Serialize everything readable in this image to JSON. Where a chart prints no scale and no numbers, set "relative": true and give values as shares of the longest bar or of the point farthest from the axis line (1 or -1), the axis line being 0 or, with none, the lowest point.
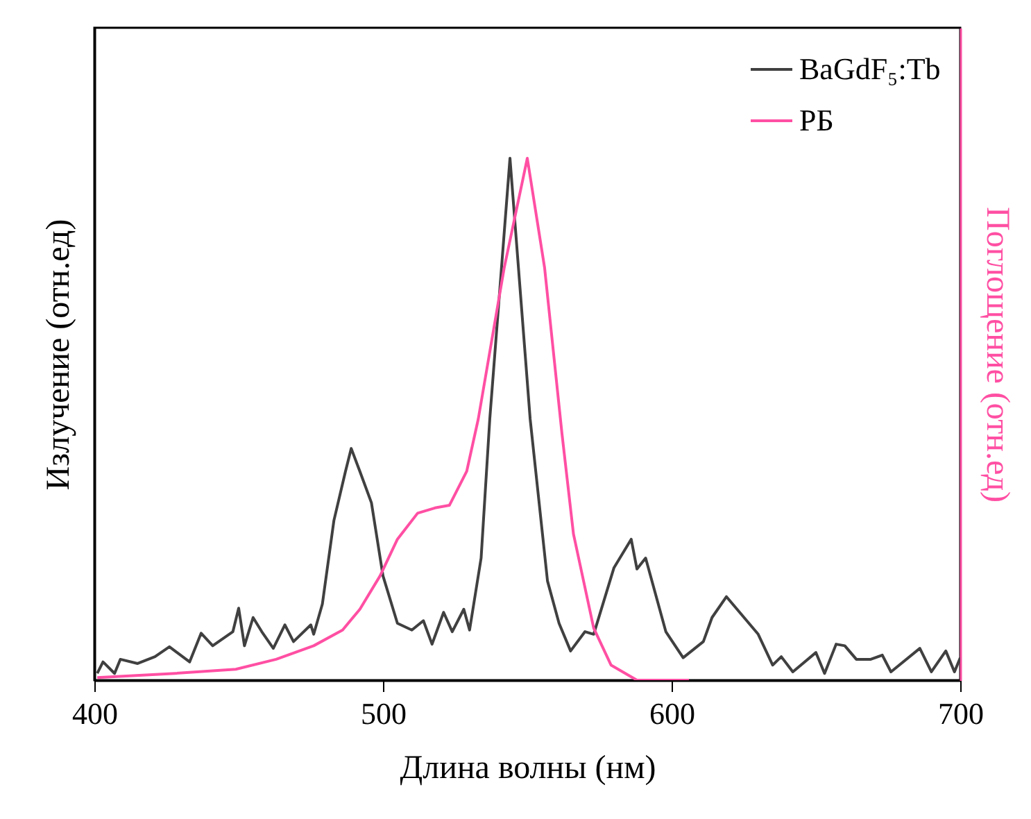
{
  "chart_data": {
    "type": "line",
    "xlabel": "Длина волны (нм)",
    "ylabel": "Излучение (отн.ед)",
    "y2label": "Поглощение (отн.ед)",
    "relative": true,
    "xlim": [
      400,
      700
    ],
    "xticks": [
      400,
      500,
      600,
      700
    ],
    "legend": "top right",
    "grid": false,
    "series": [
      {
        "name": "BaGdF₅:Tb",
        "color": "#404040",
        "x": [
          401,
          403,
          407,
          409,
          415,
          421,
          426,
          433,
          437,
          441,
          448,
          450,
          452,
          455,
          458,
          462,
          466,
          469,
          475,
          476,
          479,
          483,
          487,
          489,
          492,
          496,
          500,
          505,
          510,
          514,
          517,
          521,
          524,
          528,
          530,
          534,
          537,
          544,
          551,
          557,
          561,
          565,
          570,
          573,
          580,
          586,
          588,
          591,
          598,
          604,
          611,
          614,
          619,
          630,
          635,
          638,
          642,
          650,
          653,
          657,
          660,
          664,
          669,
          673,
          676,
          686,
          690,
          695,
          698,
          700
        ],
        "values": [
          0.013,
          0.035,
          0.013,
          0.04,
          0.032,
          0.045,
          0.064,
          0.035,
          0.09,
          0.066,
          0.093,
          0.138,
          0.066,
          0.12,
          0.093,
          0.061,
          0.106,
          0.074,
          0.106,
          0.088,
          0.146,
          0.306,
          0.4,
          0.444,
          0.4,
          0.34,
          0.2,
          0.109,
          0.096,
          0.114,
          0.069,
          0.13,
          0.093,
          0.136,
          0.096,
          0.234,
          0.5,
          1.0,
          0.5,
          0.19,
          0.109,
          0.056,
          0.093,
          0.088,
          0.215,
          0.27,
          0.213,
          0.234,
          0.093,
          0.043,
          0.074,
          0.12,
          0.16,
          0.088,
          0.029,
          0.045,
          0.016,
          0.053,
          0.013,
          0.069,
          0.066,
          0.04,
          0.04,
          0.048,
          0.016,
          0.061,
          0.016,
          0.056,
          0.016,
          0.043
        ]
      },
      {
        "name": "РБ",
        "color": "#ff4fa3",
        "axis": "y2",
        "x": [
          401,
          428,
          449,
          463,
          476,
          486,
          492,
          499,
          505,
          512,
          518,
          523,
          529,
          533,
          542,
          550,
          556,
          562,
          566,
          573,
          579,
          588,
          606
        ],
        "values": [
          0.005,
          0.013,
          0.021,
          0.04,
          0.066,
          0.096,
          0.136,
          0.2,
          0.27,
          0.32,
          0.33,
          0.335,
          0.4,
          0.5,
          0.79,
          1.0,
          0.79,
          0.473,
          0.28,
          0.1,
          0.029,
          0,
          0
        ]
      }
    ]
  }
}
